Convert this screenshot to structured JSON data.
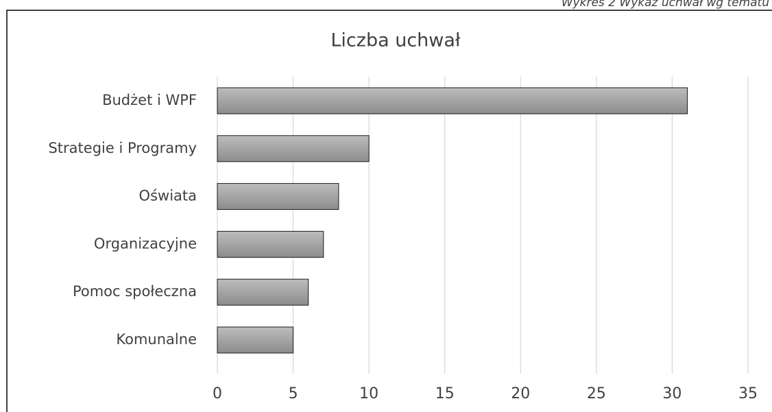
{
  "chart_data": {
    "type": "bar",
    "orientation": "horizontal",
    "caption": "Wykres 2 Wykaz uchwał wg tematu",
    "title": "Liczba uchwał",
    "categories": [
      "Budżet i WPF",
      "Strategie i Programy",
      "Oświata",
      "Organizacyjne",
      "Pomoc społeczna",
      "Komunalne"
    ],
    "values": [
      31,
      10,
      8,
      7,
      6,
      5
    ],
    "color": "#8c8c8c",
    "xlim": [
      0,
      35
    ],
    "xticks": [
      0,
      5,
      10,
      15,
      20,
      25,
      30,
      35
    ],
    "grid": true
  }
}
